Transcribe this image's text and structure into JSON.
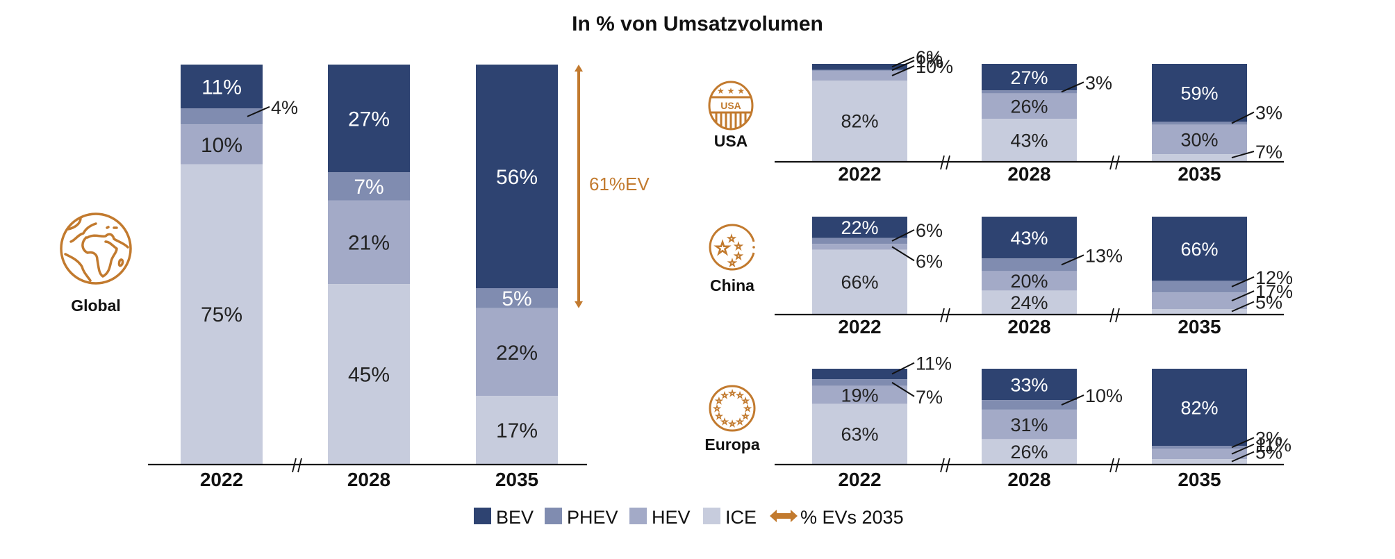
{
  "colors": {
    "BEV": "#2E4371",
    "PHEV": "#808CB0",
    "HEV": "#A3AAC7",
    "ICE": "#C7CCDD",
    "accent": "#C27A2E",
    "axis": "#111111",
    "text_dark": "#222222",
    "text_light": "#ffffff"
  },
  "chart_data": {
    "type": "bar",
    "stacked": true,
    "title": "In % von Umsatzvolumen",
    "ylabel": "",
    "xlabel": "",
    "ylim": [
      0,
      100
    ],
    "grid": false,
    "legend": {
      "position": "bottom",
      "entries": [
        "BEV",
        "PHEV",
        "HEV",
        "ICE",
        "% EVs 2035"
      ]
    },
    "segments_order_top_to_bottom": [
      "BEV",
      "PHEV",
      "HEV",
      "ICE"
    ],
    "panels": [
      {
        "region": "Global",
        "icon": "globe-icon",
        "categories": [
          "2022",
          "2028",
          "2035"
        ],
        "axis_breaks": [
          "between 2022 and 2028"
        ],
        "series": [
          {
            "name": "BEV",
            "values": [
              11,
              27,
              56
            ]
          },
          {
            "name": "PHEV",
            "values": [
              4,
              7,
              5
            ]
          },
          {
            "name": "HEV",
            "values": [
              10,
              21,
              22
            ]
          },
          {
            "name": "ICE",
            "values": [
              75,
              45,
              17
            ]
          }
        ],
        "annotation": {
          "label": "61%EV",
          "category": "2035",
          "spans": [
            "BEV",
            "PHEV"
          ]
        }
      },
      {
        "region": "USA",
        "icon": "usa-badge-icon",
        "categories": [
          "2022",
          "2028",
          "2035"
        ],
        "axis_breaks": [
          "between 2022 and 2028",
          "between 2028 and 2035"
        ],
        "series": [
          {
            "name": "BEV",
            "values": [
              6,
              27,
              59
            ]
          },
          {
            "name": "PHEV",
            "values": [
              1,
              3,
              3
            ]
          },
          {
            "name": "HEV",
            "values": [
              10,
              26,
              30
            ]
          },
          {
            "name": "ICE",
            "values": [
              82,
              43,
              7
            ]
          }
        ]
      },
      {
        "region": "China",
        "icon": "china-flag-icon",
        "categories": [
          "2022",
          "2028",
          "2035"
        ],
        "axis_breaks": [
          "between 2022 and 2028",
          "between 2028 and 2035"
        ],
        "series": [
          {
            "name": "BEV",
            "values": [
              22,
              43,
              66
            ]
          },
          {
            "name": "PHEV",
            "values": [
              6,
              13,
              12
            ]
          },
          {
            "name": "HEV",
            "values": [
              6,
              20,
              17
            ]
          },
          {
            "name": "ICE",
            "values": [
              66,
              24,
              5
            ]
          }
        ]
      },
      {
        "region": "Europa",
        "icon": "eu-flag-icon",
        "categories": [
          "2022",
          "2028",
          "2035"
        ],
        "axis_breaks": [
          "between 2022 and 2028",
          "between 2028 and 2035"
        ],
        "series": [
          {
            "name": "BEV",
            "values": [
              11,
              33,
              82
            ]
          },
          {
            "name": "PHEV",
            "values": [
              7,
              10,
              3
            ]
          },
          {
            "name": "HEV",
            "values": [
              19,
              31,
              11
            ]
          },
          {
            "name": "ICE",
            "values": [
              63,
              26,
              5
            ]
          }
        ]
      }
    ]
  },
  "labels": {
    "title": "In % von Umsatzvolumen",
    "ev_annotation": "61%EV",
    "legend": [
      "BEV",
      "PHEV",
      "HEV",
      "ICE",
      "% EVs 2035"
    ],
    "regions": [
      "Global",
      "USA",
      "China",
      "Europa"
    ],
    "usa_badge_text": "USA"
  }
}
